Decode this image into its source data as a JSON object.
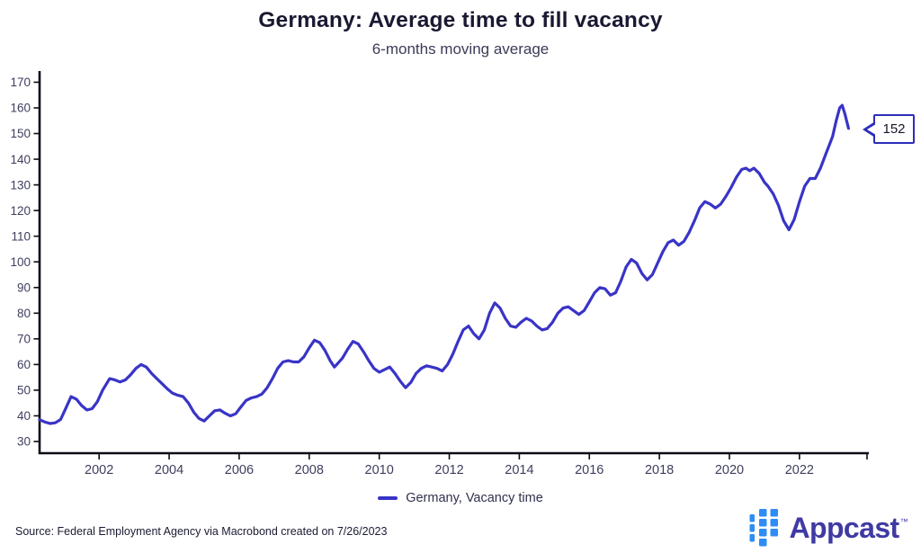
{
  "header": {
    "title": "Germany: Average time to fill vacancy",
    "subtitle": "6-months moving average"
  },
  "legend": {
    "label": "Germany, Vacancy time"
  },
  "callout": {
    "value": "152"
  },
  "footer": {
    "source": "Source: Federal Employment Agency via Macrobond created on 7/26/2023",
    "logo_text": "Appcast",
    "logo_tm": "™"
  },
  "colors": {
    "line": "#3934c6",
    "axis": "#0b0b15",
    "tick_label": "#3e3e5e",
    "title": "#191932",
    "subtitle": "#3b3b58",
    "callout_border": "#2d2dbb",
    "legend_text": "#30304d",
    "appcast_blue": "#2e8cf6",
    "appcast_indigo": "#3f3aa3"
  },
  "chart_data": {
    "type": "line",
    "title": "Germany: Average time to fill vacancy",
    "subtitle": "6-months moving average",
    "xlabel": "",
    "ylabel": "",
    "grid": false,
    "legend_position": "bottom",
    "xlim": [
      2000.3,
      2023.93
    ],
    "ylim": [
      25,
      174
    ],
    "x_ticks": [
      2002,
      2004,
      2006,
      2008,
      2010,
      2012,
      2014,
      2016,
      2018,
      2020,
      2022
    ],
    "y_ticks": [
      30,
      40,
      50,
      60,
      70,
      80,
      90,
      100,
      110,
      120,
      130,
      140,
      150,
      160,
      170
    ],
    "end_annotation": {
      "label": "152",
      "x": 2023.4,
      "y": 152
    },
    "series": [
      {
        "name": "Germany, Vacancy time",
        "points": [
          [
            2000.3,
            38.5
          ],
          [
            2000.45,
            37.6
          ],
          [
            2000.6,
            37.0
          ],
          [
            2000.75,
            37.3
          ],
          [
            2000.9,
            38.6
          ],
          [
            2001.05,
            43.0
          ],
          [
            2001.2,
            47.5
          ],
          [
            2001.35,
            46.5
          ],
          [
            2001.5,
            44.0
          ],
          [
            2001.65,
            42.3
          ],
          [
            2001.8,
            42.8
          ],
          [
            2001.95,
            45.5
          ],
          [
            2002.1,
            50.0
          ],
          [
            2002.3,
            54.5
          ],
          [
            2002.45,
            54.0
          ],
          [
            2002.6,
            53.2
          ],
          [
            2002.75,
            54.0
          ],
          [
            2002.9,
            56.0
          ],
          [
            2003.05,
            58.5
          ],
          [
            2003.2,
            60.0
          ],
          [
            2003.35,
            59.0
          ],
          [
            2003.5,
            56.5
          ],
          [
            2003.65,
            54.5
          ],
          [
            2003.8,
            52.5
          ],
          [
            2003.95,
            50.5
          ],
          [
            2004.1,
            48.8
          ],
          [
            2004.25,
            48.0
          ],
          [
            2004.4,
            47.5
          ],
          [
            2004.55,
            45.0
          ],
          [
            2004.7,
            41.5
          ],
          [
            2004.85,
            39.0
          ],
          [
            2005.0,
            38.0
          ],
          [
            2005.15,
            40.0
          ],
          [
            2005.3,
            42.0
          ],
          [
            2005.45,
            42.3
          ],
          [
            2005.6,
            41.0
          ],
          [
            2005.75,
            40.0
          ],
          [
            2005.9,
            40.8
          ],
          [
            2006.05,
            43.5
          ],
          [
            2006.2,
            46.0
          ],
          [
            2006.35,
            47.0
          ],
          [
            2006.5,
            47.5
          ],
          [
            2006.65,
            48.5
          ],
          [
            2006.8,
            51.0
          ],
          [
            2006.95,
            54.5
          ],
          [
            2007.1,
            58.5
          ],
          [
            2007.25,
            61.0
          ],
          [
            2007.4,
            61.5
          ],
          [
            2007.55,
            61.0
          ],
          [
            2007.7,
            61.0
          ],
          [
            2007.85,
            63.0
          ],
          [
            2008.0,
            66.5
          ],
          [
            2008.15,
            69.5
          ],
          [
            2008.3,
            68.5
          ],
          [
            2008.45,
            65.5
          ],
          [
            2008.6,
            61.5
          ],
          [
            2008.72,
            59.0
          ],
          [
            2008.82,
            60.5
          ],
          [
            2008.95,
            62.5
          ],
          [
            2009.1,
            66.0
          ],
          [
            2009.25,
            69.0
          ],
          [
            2009.4,
            68.0
          ],
          [
            2009.55,
            65.0
          ],
          [
            2009.7,
            61.5
          ],
          [
            2009.85,
            58.5
          ],
          [
            2010.0,
            57.0
          ],
          [
            2010.15,
            58.0
          ],
          [
            2010.3,
            59.0
          ],
          [
            2010.45,
            56.5
          ],
          [
            2010.6,
            53.5
          ],
          [
            2010.75,
            51.0
          ],
          [
            2010.9,
            53.0
          ],
          [
            2011.05,
            56.5
          ],
          [
            2011.2,
            58.5
          ],
          [
            2011.35,
            59.5
          ],
          [
            2011.5,
            59.0
          ],
          [
            2011.65,
            58.5
          ],
          [
            2011.8,
            57.5
          ],
          [
            2011.95,
            60.0
          ],
          [
            2012.1,
            64.0
          ],
          [
            2012.25,
            69.0
          ],
          [
            2012.4,
            73.5
          ],
          [
            2012.55,
            75.0
          ],
          [
            2012.7,
            72.0
          ],
          [
            2012.85,
            70.0
          ],
          [
            2013.0,
            73.5
          ],
          [
            2013.15,
            80.0
          ],
          [
            2013.3,
            84.0
          ],
          [
            2013.45,
            82.0
          ],
          [
            2013.6,
            78.0
          ],
          [
            2013.75,
            75.0
          ],
          [
            2013.9,
            74.5
          ],
          [
            2014.05,
            76.5
          ],
          [
            2014.2,
            78.0
          ],
          [
            2014.35,
            77.0
          ],
          [
            2014.5,
            75.0
          ],
          [
            2014.65,
            73.5
          ],
          [
            2014.8,
            74.0
          ],
          [
            2014.95,
            76.5
          ],
          [
            2015.1,
            80.0
          ],
          [
            2015.25,
            82.0
          ],
          [
            2015.4,
            82.5
          ],
          [
            2015.55,
            81.0
          ],
          [
            2015.7,
            79.5
          ],
          [
            2015.85,
            81.0
          ],
          [
            2016.0,
            84.5
          ],
          [
            2016.15,
            88.0
          ],
          [
            2016.3,
            90.0
          ],
          [
            2016.45,
            89.5
          ],
          [
            2016.6,
            87.0
          ],
          [
            2016.75,
            88.0
          ],
          [
            2016.9,
            92.5
          ],
          [
            2017.05,
            98.0
          ],
          [
            2017.2,
            101.0
          ],
          [
            2017.35,
            99.5
          ],
          [
            2017.5,
            95.5
          ],
          [
            2017.65,
            93.0
          ],
          [
            2017.8,
            95.0
          ],
          [
            2017.95,
            99.5
          ],
          [
            2018.1,
            104.0
          ],
          [
            2018.25,
            107.5
          ],
          [
            2018.4,
            108.5
          ],
          [
            2018.55,
            106.5
          ],
          [
            2018.7,
            108.0
          ],
          [
            2018.85,
            111.5
          ],
          [
            2019.0,
            116.0
          ],
          [
            2019.15,
            121.0
          ],
          [
            2019.3,
            123.5
          ],
          [
            2019.45,
            122.5
          ],
          [
            2019.6,
            121.0
          ],
          [
            2019.75,
            122.5
          ],
          [
            2019.9,
            125.5
          ],
          [
            2020.05,
            129.0
          ],
          [
            2020.2,
            133.0
          ],
          [
            2020.35,
            136.0
          ],
          [
            2020.47,
            136.5
          ],
          [
            2020.58,
            135.5
          ],
          [
            2020.7,
            136.5
          ],
          [
            2020.85,
            134.5
          ],
          [
            2021.0,
            131.0
          ],
          [
            2021.1,
            129.5
          ],
          [
            2021.25,
            126.5
          ],
          [
            2021.4,
            122.0
          ],
          [
            2021.55,
            116.0
          ],
          [
            2021.7,
            112.5
          ],
          [
            2021.85,
            116.5
          ],
          [
            2022.0,
            123.5
          ],
          [
            2022.15,
            129.5
          ],
          [
            2022.3,
            132.5
          ],
          [
            2022.45,
            132.5
          ],
          [
            2022.6,
            136.5
          ],
          [
            2022.75,
            142.0
          ],
          [
            2022.85,
            145.5
          ],
          [
            2022.95,
            149.0
          ],
          [
            2023.05,
            155.0
          ],
          [
            2023.15,
            160.0
          ],
          [
            2023.22,
            161.0
          ],
          [
            2023.3,
            157.5
          ],
          [
            2023.4,
            152.0
          ]
        ]
      }
    ]
  }
}
